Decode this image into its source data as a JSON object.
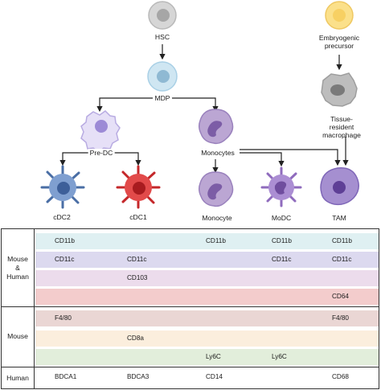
{
  "diagram": {
    "cells": {
      "hsc": "HSC",
      "mdp": "MDP",
      "pre_dc": "Pre-DC",
      "monocytes": "Monocytes",
      "cdc2": "cDC2",
      "cdc1": "cDC1",
      "monocyte": "Monocyte",
      "modc": "MoDC",
      "tam": "TAM",
      "embryogenic": "Embryogenic\nprecursor",
      "tissue_resident": "Tissue-resident\nmacrophage"
    }
  },
  "table": {
    "groups": [
      {
        "label": "Mouse\n&\nHuman"
      },
      {
        "label": "Mouse"
      },
      {
        "label": "Human"
      }
    ],
    "rows": [
      {
        "color": "#dff0f2",
        "cells": [
          "CD11b",
          "",
          "CD11b",
          "CD11b",
          "CD11b"
        ]
      },
      {
        "color": "#dcd9ef",
        "cells": [
          "CD11c",
          "CD11c",
          "",
          "CD11c",
          "CD11c"
        ]
      },
      {
        "color": "#ecdcec",
        "cells": [
          "",
          "CD103",
          "",
          "",
          ""
        ]
      },
      {
        "color": "#f3cccc",
        "cells": [
          "",
          "",
          "",
          "",
          "CD64"
        ]
      },
      {
        "color": "#ead6d4",
        "cells": [
          "F4/80",
          "",
          "",
          "",
          "F4/80"
        ]
      },
      {
        "color": "#fbeedd",
        "cells": [
          "",
          "CD8a",
          "",
          "",
          ""
        ]
      },
      {
        "color": "#e2eedb",
        "cells": [
          "",
          "",
          "Ly6C",
          "Ly6C",
          ""
        ]
      },
      {
        "color": "",
        "cells": [
          "BDCA1",
          "BDCA3",
          "CD14",
          "",
          "CD68"
        ]
      }
    ]
  }
}
